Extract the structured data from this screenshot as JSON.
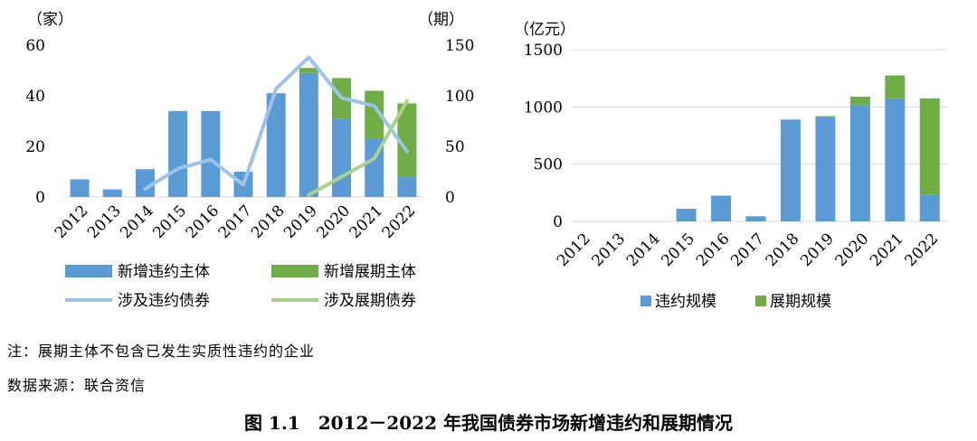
{
  "chart_data": [
    {
      "type": "bar",
      "categories": [
        "2012",
        "2013",
        "2014",
        "2015",
        "2016",
        "2017",
        "2018",
        "2019",
        "2020",
        "2021",
        "2022"
      ],
      "left_axis_unit": "（家）",
      "right_axis_unit": "（期）",
      "ylim": [
        0,
        60
      ],
      "y_ticks": [
        0,
        20,
        40,
        60
      ],
      "y2lim": [
        0,
        150
      ],
      "y2_ticks": [
        0,
        50,
        100,
        150
      ],
      "stacked": true,
      "series": [
        {
          "name": "新增违约主体",
          "kind": "bar",
          "axis": "left",
          "color": "#5b9bd5",
          "values": [
            7,
            3,
            11,
            34,
            34,
            10,
            41,
            49,
            31,
            23,
            8
          ]
        },
        {
          "name": "新增展期主体",
          "kind": "bar",
          "axis": "left",
          "color": "#70ad47",
          "values": [
            0,
            0,
            0,
            0,
            0,
            0,
            0,
            2,
            16,
            19,
            29
          ]
        },
        {
          "name": "涉及违约债券",
          "kind": "line",
          "axis": "right",
          "color": "#9dc3e6",
          "values": [
            null,
            null,
            8,
            28,
            37,
            12,
            107,
            138,
            98,
            90,
            45
          ]
        },
        {
          "name": "涉及展期债券",
          "kind": "line",
          "axis": "right",
          "color": "#a9d18e",
          "values": [
            null,
            null,
            null,
            null,
            null,
            null,
            null,
            2,
            20,
            38,
            95
          ]
        }
      ],
      "legend": [
        "新增违约主体",
        "新增展期主体",
        "涉及违约债券",
        "涉及展期债券"
      ]
    },
    {
      "type": "bar",
      "categories": [
        "2012",
        "2013",
        "2014",
        "2015",
        "2016",
        "2017",
        "2018",
        "2019",
        "2020",
        "2021",
        "2022"
      ],
      "left_axis_unit": "（亿元）",
      "ylim": [
        0,
        1500
      ],
      "y_ticks": [
        0,
        500,
        1000,
        1500
      ],
      "stacked": true,
      "series": [
        {
          "name": "违约规模",
          "kind": "bar",
          "color": "#5b9bd5",
          "values": [
            0,
            0,
            0,
            110,
            225,
            45,
            890,
            910,
            1015,
            1075,
            235
          ]
        },
        {
          "name": "展期规模",
          "kind": "bar",
          "color": "#70ad47",
          "values": [
            0,
            0,
            0,
            0,
            0,
            0,
            0,
            10,
            75,
            200,
            840
          ]
        }
      ],
      "legend": [
        "违约规模",
        "展期规模"
      ]
    }
  ],
  "notes": {
    "note": "注：展期主体不包含已发生实质性违约的企业",
    "source": "数据来源：联合资信"
  },
  "caption": "图 1.1　2012－2022 年我国债券市场新增违约和展期情况"
}
